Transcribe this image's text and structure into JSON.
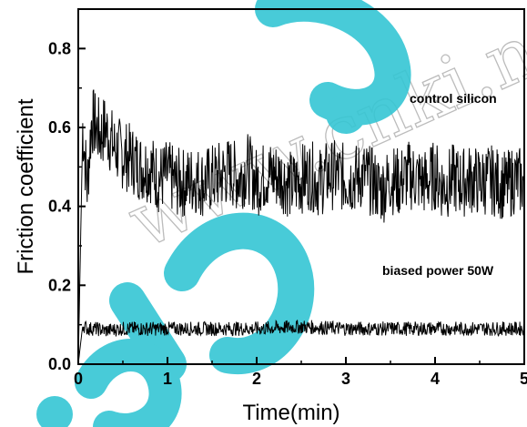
{
  "chart_data": {
    "type": "line",
    "title": "",
    "xlabel": "Time(min)",
    "ylabel": "Friction coefficient",
    "xlim": [
      0,
      5
    ],
    "ylim": [
      0,
      0.9
    ],
    "xticks": [
      "0",
      "1",
      "2",
      "3",
      "4",
      "5"
    ],
    "yticks": [
      "0.0",
      "0.2",
      "0.4",
      "0.6",
      "0.8"
    ],
    "grid": false,
    "legend": "none",
    "series": [
      {
        "name": "control silicon",
        "color": "#000000",
        "x": [
          0.0,
          0.05,
          0.1,
          0.15,
          0.2,
          0.25,
          0.3,
          0.4,
          0.5,
          0.6,
          0.7,
          0.8,
          0.9,
          1.0,
          1.1,
          1.2,
          1.3,
          1.4,
          1.5,
          1.6,
          1.7,
          1.8,
          1.9,
          2.0,
          2.1,
          2.2,
          2.3,
          2.4,
          2.5,
          2.6,
          2.7,
          2.8,
          2.9,
          3.0,
          3.1,
          3.2,
          3.3,
          3.4,
          3.5,
          3.6,
          3.7,
          3.8,
          3.9,
          4.0,
          4.1,
          4.2,
          4.3,
          4.4,
          4.5,
          4.6,
          4.7,
          4.8,
          4.9,
          5.0
        ],
        "values": [
          0.0,
          0.6,
          0.45,
          0.62,
          0.6,
          0.58,
          0.6,
          0.55,
          0.53,
          0.52,
          0.5,
          0.5,
          0.47,
          0.48,
          0.46,
          0.46,
          0.47,
          0.46,
          0.47,
          0.48,
          0.49,
          0.47,
          0.5,
          0.46,
          0.48,
          0.48,
          0.47,
          0.45,
          0.47,
          0.48,
          0.46,
          0.48,
          0.48,
          0.47,
          0.47,
          0.48,
          0.46,
          0.44,
          0.47,
          0.46,
          0.48,
          0.47,
          0.46,
          0.48,
          0.45,
          0.47,
          0.46,
          0.47,
          0.46,
          0.47,
          0.46,
          0.45,
          0.47,
          0.46
        ]
      },
      {
        "name": "biased power 50W",
        "color": "#000000",
        "x": [
          0.0,
          0.05,
          0.1,
          0.2,
          0.3,
          0.5,
          1.0,
          1.5,
          2.0,
          2.5,
          3.0,
          3.5,
          4.0,
          4.5,
          5.0
        ],
        "values": [
          0.0,
          0.1,
          0.09,
          0.09,
          0.085,
          0.09,
          0.09,
          0.09,
          0.09,
          0.095,
          0.09,
          0.09,
          0.09,
          0.09,
          0.09
        ]
      }
    ],
    "annotations": [
      "control silicon",
      "biased power 50W"
    ],
    "watermark": "www.cnki.net",
    "watermark_overlay": "cnki spin"
  }
}
